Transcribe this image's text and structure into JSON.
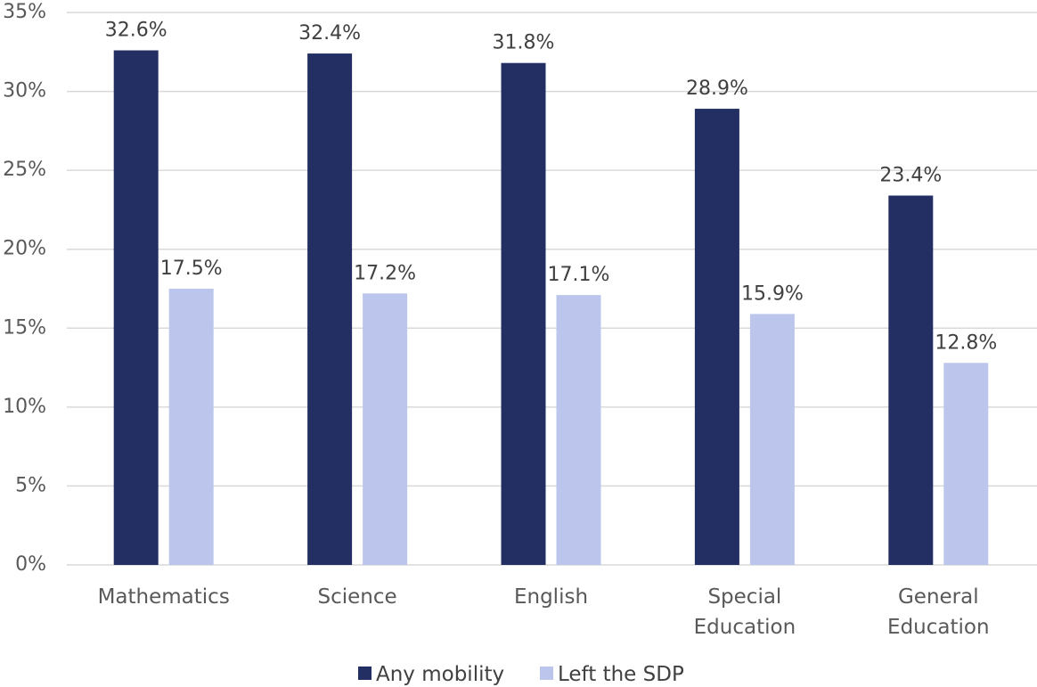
{
  "chart_data": {
    "type": "bar",
    "categories": [
      [
        "Mathematics"
      ],
      [
        "Science"
      ],
      [
        "English"
      ],
      [
        "Special",
        "Education"
      ],
      [
        "General",
        "Education"
      ]
    ],
    "series": [
      {
        "name": "Any mobility",
        "color": "#232F63",
        "values": [
          32.6,
          32.4,
          31.8,
          28.9,
          23.4
        ],
        "labels": [
          "32.6%",
          "32.4%",
          "31.8%",
          "28.9%",
          "23.4%"
        ]
      },
      {
        "name": "Left the SDP",
        "color": "#BCC6EC",
        "values": [
          17.5,
          17.2,
          17.1,
          15.9,
          12.8
        ],
        "labels": [
          "17.5%",
          "17.2%",
          "17.1%",
          "15.9%",
          "12.8%"
        ]
      }
    ],
    "ylim": [
      0,
      35
    ],
    "yticks": [
      0,
      5,
      10,
      15,
      20,
      25,
      30,
      35
    ],
    "ytick_labels": [
      "0%",
      "5%",
      "10%",
      "15%",
      "20%",
      "25%",
      "30%",
      "35%"
    ],
    "gridlines": true,
    "gridline_color": "#D9D9D9",
    "legend_position": "bottom"
  }
}
